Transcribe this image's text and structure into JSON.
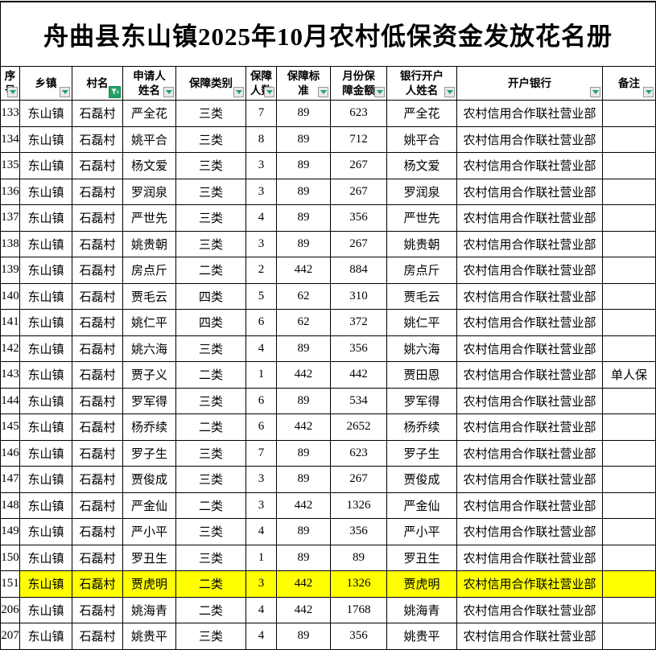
{
  "title": "舟曲县东山镇2025年10月农村低保资金发放花名册",
  "colors": {
    "highlight_row": "#ffff00",
    "filter_green": "#21a366",
    "grid_line": "#000000"
  },
  "icons": {
    "dropdown": "filter-dropdown-arrow-icon",
    "active_filter": "filter-applied-funnel-icon"
  },
  "table": {
    "columns": [
      {
        "id": "serial",
        "label": "序\n号",
        "filtered": false
      },
      {
        "id": "township",
        "label": "乡镇",
        "filtered": false
      },
      {
        "id": "village",
        "label": "村名",
        "filtered": true
      },
      {
        "id": "applicant-name",
        "label": "申请人\n姓名",
        "filtered": false
      },
      {
        "id": "category",
        "label": "保障类别",
        "filtered": false
      },
      {
        "id": "persons",
        "label": "保障\n人数",
        "filtered": false
      },
      {
        "id": "standard",
        "label": "保障标\n准",
        "filtered": false
      },
      {
        "id": "monthly-amount",
        "label": "月份保\n障金额",
        "filtered": false
      },
      {
        "id": "account-holder",
        "label": "银行开户\n人姓名",
        "filtered": false
      },
      {
        "id": "bank",
        "label": "开户银行",
        "filtered": false
      },
      {
        "id": "remarks",
        "label": "备注",
        "filtered": false
      }
    ],
    "highlighted_serial": "151",
    "rows": [
      [
        "133",
        "东山镇",
        "石磊村",
        "严全花",
        "三类",
        "7",
        "89",
        "623",
        "严全花",
        "农村信用合作联社营业部",
        ""
      ],
      [
        "134",
        "东山镇",
        "石磊村",
        "姚平合",
        "三类",
        "8",
        "89",
        "712",
        "姚平合",
        "农村信用合作联社营业部",
        ""
      ],
      [
        "135",
        "东山镇",
        "石磊村",
        "杨文爱",
        "三类",
        "3",
        "89",
        "267",
        "杨文爱",
        "农村信用合作联社营业部",
        ""
      ],
      [
        "136",
        "东山镇",
        "石磊村",
        "罗润泉",
        "三类",
        "3",
        "89",
        "267",
        "罗润泉",
        "农村信用合作联社营业部",
        ""
      ],
      [
        "137",
        "东山镇",
        "石磊村",
        "严世先",
        "三类",
        "4",
        "89",
        "356",
        "严世先",
        "农村信用合作联社营业部",
        ""
      ],
      [
        "138",
        "东山镇",
        "石磊村",
        "姚贵朝",
        "三类",
        "3",
        "89",
        "267",
        "姚贵朝",
        "农村信用合作联社营业部",
        ""
      ],
      [
        "139",
        "东山镇",
        "石磊村",
        "房点斤",
        "二类",
        "2",
        "442",
        "884",
        "房点斤",
        "农村信用合作联社营业部",
        ""
      ],
      [
        "140",
        "东山镇",
        "石磊村",
        "贾毛云",
        "四类",
        "5",
        "62",
        "310",
        "贾毛云",
        "农村信用合作联社营业部",
        ""
      ],
      [
        "141",
        "东山镇",
        "石磊村",
        "姚仁平",
        "四类",
        "6",
        "62",
        "372",
        "姚仁平",
        "农村信用合作联社营业部",
        ""
      ],
      [
        "142",
        "东山镇",
        "石磊村",
        "姚六海",
        "三类",
        "4",
        "89",
        "356",
        "姚六海",
        "农村信用合作联社营业部",
        ""
      ],
      [
        "143",
        "东山镇",
        "石磊村",
        "贾子义",
        "二类",
        "1",
        "442",
        "442",
        "贾田恩",
        "农村信用合作联社营业部",
        "单人保"
      ],
      [
        "144",
        "东山镇",
        "石磊村",
        "罗军得",
        "三类",
        "6",
        "89",
        "534",
        "罗军得",
        "农村信用合作联社营业部",
        ""
      ],
      [
        "145",
        "东山镇",
        "石磊村",
        "杨乔续",
        "二类",
        "6",
        "442",
        "2652",
        "杨乔续",
        "农村信用合作联社营业部",
        ""
      ],
      [
        "146",
        "东山镇",
        "石磊村",
        "罗子生",
        "三类",
        "7",
        "89",
        "623",
        "罗子生",
        "农村信用合作联社营业部",
        ""
      ],
      [
        "147",
        "东山镇",
        "石磊村",
        "贾俊成",
        "三类",
        "3",
        "89",
        "267",
        "贾俊成",
        "农村信用合作联社营业部",
        ""
      ],
      [
        "148",
        "东山镇",
        "石磊村",
        "严金仙",
        "二类",
        "3",
        "442",
        "1326",
        "严金仙",
        "农村信用合作联社营业部",
        ""
      ],
      [
        "149",
        "东山镇",
        "石磊村",
        "严小平",
        "三类",
        "4",
        "89",
        "356",
        "严小平",
        "农村信用合作联社营业部",
        ""
      ],
      [
        "150",
        "东山镇",
        "石磊村",
        "罗丑生",
        "三类",
        "1",
        "89",
        "89",
        "罗丑生",
        "农村信用合作联社营业部",
        ""
      ],
      [
        "151",
        "东山镇",
        "石磊村",
        "贾虎明",
        "二类",
        "3",
        "442",
        "1326",
        "贾虎明",
        "农村信用合作联社营业部",
        ""
      ],
      [
        "206",
        "东山镇",
        "石磊村",
        "姚海青",
        "二类",
        "4",
        "442",
        "1768",
        "姚海青",
        "农村信用合作联社营业部",
        ""
      ],
      [
        "207",
        "东山镇",
        "石磊村",
        "姚贵平",
        "三类",
        "4",
        "89",
        "356",
        "姚贵平",
        "农村信用合作联社营业部",
        ""
      ]
    ]
  }
}
